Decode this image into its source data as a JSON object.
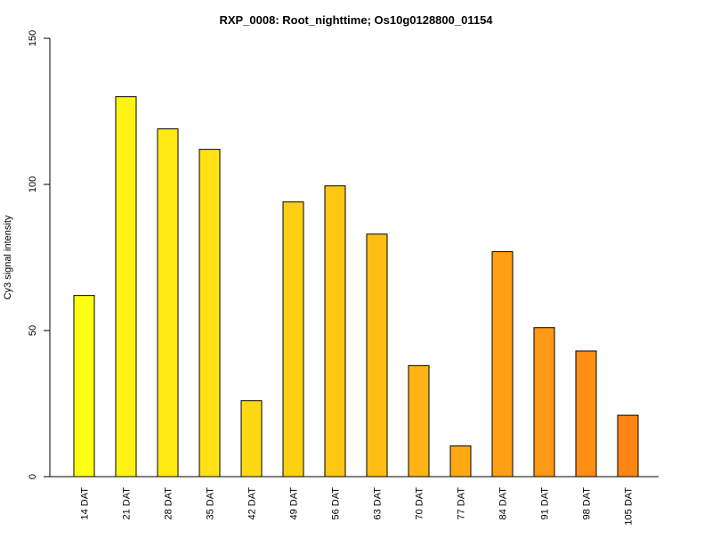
{
  "chart_data": {
    "type": "bar",
    "title": "RXP_0008: Root_nighttime; Os10g0128800_01154",
    "xlabel": "",
    "ylabel": "Cy3 signal intensity",
    "ylim": [
      0,
      150
    ],
    "yticks": [
      0,
      50,
      100,
      150
    ],
    "grid": false,
    "legend": "none",
    "categories": [
      "14 DAT",
      "21 DAT",
      "28 DAT",
      "35 DAT",
      "42 DAT",
      "49 DAT",
      "56 DAT",
      "63 DAT",
      "70 DAT",
      "77 DAT",
      "84 DAT",
      "91 DAT",
      "98 DAT",
      "105 DAT"
    ],
    "values": [
      62,
      130,
      119,
      112,
      26,
      94,
      99.5,
      83,
      38,
      10.5,
      77,
      51,
      43,
      21
    ],
    "colors": [
      "#ffff14",
      "#fff314",
      "#ffea14",
      "#ffe114",
      "#ffd814",
      "#ffcf14",
      "#ffc614",
      "#ffbd14",
      "#ffb314",
      "#ffaa14",
      "#ffa014",
      "#ff9814",
      "#ff8e14",
      "#ff8514"
    ],
    "bar_edge_color": "#000000"
  }
}
